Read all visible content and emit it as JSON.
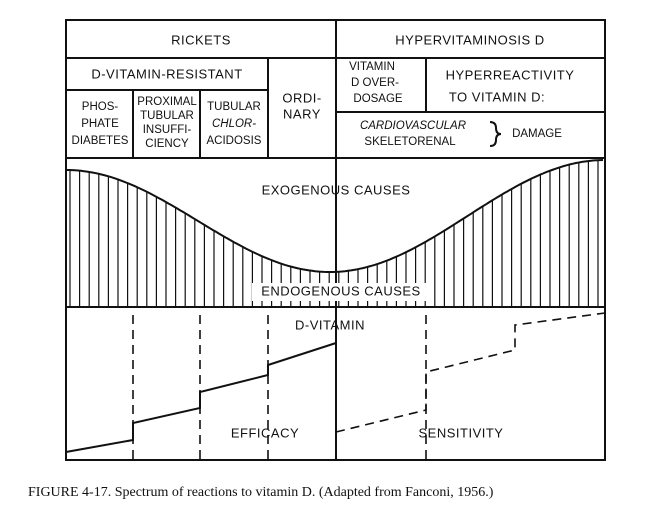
{
  "header": {
    "rickets": "RICKETS",
    "hypervitaminosis": "HYPERVITAMINOSIS D"
  },
  "groups": {
    "resistant": "D-VITAMIN-RESISTANT",
    "ordinary": [
      "ORDI-",
      "NARY"
    ],
    "overdosage": [
      "VITAMIN",
      "D OVER-",
      "DOSAGE"
    ],
    "hyperreactivity": [
      "HYPERREACTIVITY",
      "TO VITAMIN D:"
    ]
  },
  "subgroups": {
    "phosphate": [
      "PHOS-",
      "PHATE",
      "DIABETES"
    ],
    "proximal": [
      "PROXIMAL",
      "TUBULAR",
      "INSUFFI-",
      "CIENCY"
    ],
    "chloracidosis": [
      "TUBULAR",
      "CHLOR-",
      "ACIDOSIS"
    ],
    "damage": [
      "CARDIOVASCULAR",
      "SKELETORENAL",
      "DAMAGE"
    ]
  },
  "regions": {
    "exogenous": "EXOGENOUS CAUSES",
    "endogenous": "ENDOGENOUS CAUSES",
    "dvitamin": "D-VITAMIN",
    "efficacy": "EFFICACY",
    "sensitivity": "SENSITIVITY"
  },
  "caption": "FIGURE 4-17. Spectrum of reactions to vitamin D. (Adapted from Fanconi, 1956.)"
}
